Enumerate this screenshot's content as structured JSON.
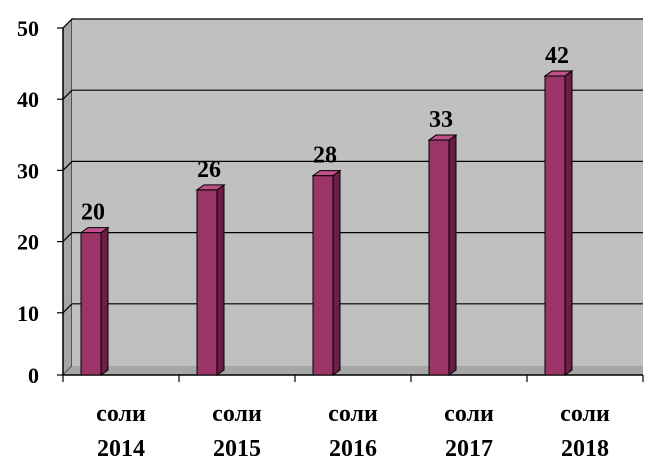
{
  "chart_data": {
    "type": "bar",
    "categories": [
      [
        "соли",
        "2014"
      ],
      [
        "соли",
        "2015"
      ],
      [
        "соли",
        "2016"
      ],
      [
        "соли",
        "2017"
      ],
      [
        "соли",
        "2018"
      ]
    ],
    "values": [
      20,
      26,
      28,
      33,
      42
    ],
    "data_labels": [
      "20",
      "26",
      "28",
      "33",
      "42"
    ],
    "y_ticks": [
      "0",
      "10",
      "20",
      "30",
      "40",
      "50"
    ],
    "ylim": [
      0,
      50
    ],
    "grid": true,
    "bar_style": "3d",
    "colors": {
      "bar_front": "#9B3467",
      "bar_side": "#6A1E46",
      "bar_top": "#C0508A",
      "plot_background": "#C0C0C0",
      "plot_wall": "#A6A6A6",
      "gridline": "#000000"
    }
  }
}
